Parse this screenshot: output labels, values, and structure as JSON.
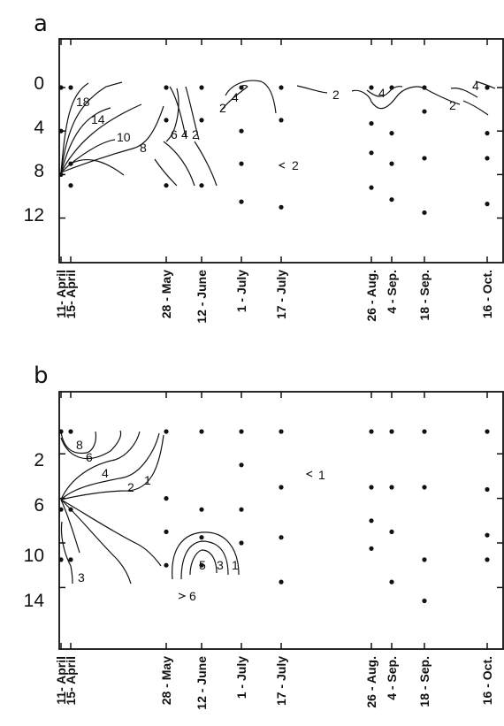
{
  "chart_data": [
    {
      "type": "contour",
      "panel": "a",
      "x_dates": [
        "11- April",
        "15- April",
        "28 - May",
        "12 - June",
        "1 - July",
        "17 - July",
        "26 - Aug.",
        "4 - Sep.",
        "18 - Sep.",
        "16 - Oct."
      ],
      "y_ticks": [
        "0",
        "4",
        "8",
        "12"
      ],
      "ylim": [
        -1,
        15
      ],
      "y_inverted": true,
      "contour_labels": [
        "18",
        "14",
        "10",
        "8",
        "6",
        "4",
        "2",
        "2",
        "4",
        "2",
        "4",
        "2",
        "4",
        "2",
        "2"
      ],
      "samples": [
        {
          "date": "11- April",
          "depths": [
            0,
            4,
            8
          ]
        },
        {
          "date": "15- April",
          "depths": [
            0,
            7,
            9
          ]
        },
        {
          "date": "28 - May",
          "depths": [
            0,
            3,
            9
          ]
        },
        {
          "date": "12 - June",
          "depths": [
            0,
            3,
            9
          ]
        },
        {
          "date": "1 - July",
          "depths": [
            0,
            4,
            7,
            10.5
          ]
        },
        {
          "date": "17 - July",
          "depths": [
            0,
            3,
            11
          ]
        },
        {
          "date": "26 - Aug.",
          "depths": [
            0,
            3.3,
            6,
            9.2
          ]
        },
        {
          "date": "4 - Sep.",
          "depths": [
            0,
            4.2,
            7,
            10.3
          ]
        },
        {
          "date": "18 - Sep.",
          "depths": [
            0,
            2.2,
            6.5,
            11.5
          ]
        },
        {
          "date": "16 - Oct.",
          "depths": [
            0,
            4.2,
            6.5,
            10.7
          ]
        }
      ]
    },
    {
      "type": "contour",
      "panel": "b",
      "x_dates": [
        "11- April",
        "15- April",
        "28 - May",
        "12 - June",
        "1 - July",
        "17 - July",
        "26 - Aug.",
        "4 - Sep.",
        "18 - Sep.",
        "16 - Oct."
      ],
      "y_ticks": [
        "2",
        "6",
        "10",
        "14"
      ],
      "ylim": [
        -2,
        17
      ],
      "y_inverted": true,
      "contour_labels": [
        "8",
        "6",
        "4",
        "2",
        "1",
        "3",
        "1",
        "5",
        "3",
        "1",
        "6"
      ],
      "samples": [
        {
          "date": "11- April",
          "depths": [
            0,
            7,
            11.5
          ]
        },
        {
          "date": "15- April",
          "depths": [
            0,
            7,
            11.5
          ]
        },
        {
          "date": "28 - May",
          "depths": [
            0,
            6,
            9,
            12
          ]
        },
        {
          "date": "12 - June",
          "depths": [
            0,
            7,
            9.5,
            12
          ]
        },
        {
          "date": "1 - July",
          "depths": [
            0,
            3,
            7,
            10
          ]
        },
        {
          "date": "17 - July",
          "depths": [
            0,
            5,
            9.5,
            13.5
          ]
        },
        {
          "date": "26 - Aug.",
          "depths": [
            0,
            5,
            8,
            10.5
          ]
        },
        {
          "date": "4 - Sep.",
          "depths": [
            0,
            5,
            9,
            13.5
          ]
        },
        {
          "date": "18 - Sep.",
          "depths": [
            0,
            5,
            11.5,
            15.2
          ]
        },
        {
          "date": "16 - Oct.",
          "depths": [
            0,
            5.2,
            9.3,
            11.5
          ]
        }
      ]
    }
  ]
}
